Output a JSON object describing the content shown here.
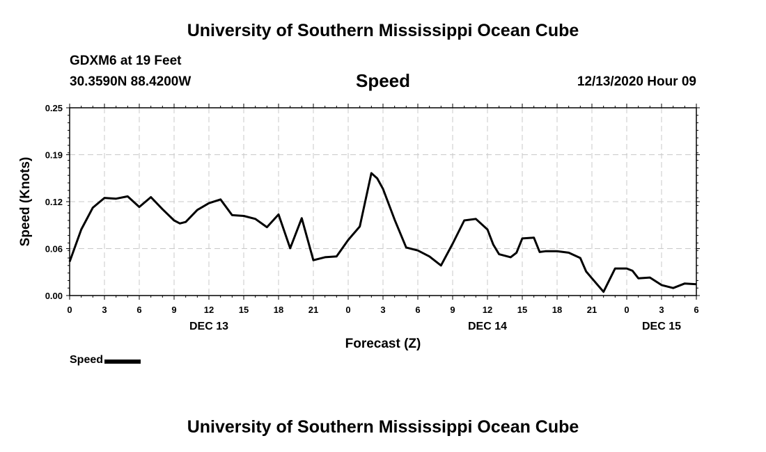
{
  "header": {
    "title": "University of Southern Mississippi Ocean Cube",
    "station": "GDXM6 at 19 Feet",
    "coords": "30.3590N 88.4200W",
    "datetime": "12/13/2020 Hour 09"
  },
  "footer": {
    "title": "University of Southern Mississippi Ocean Cube"
  },
  "legend": {
    "label": "Speed"
  },
  "chart_data": {
    "type": "line",
    "title": "Speed",
    "xlabel": "Forecast (Z)",
    "ylabel": "Speed (Knots)",
    "ylim": [
      0,
      0.25
    ],
    "yticks": [
      "0.00",
      "0.06",
      "0.12",
      "0.19",
      "0.25"
    ],
    "xlim": [
      0,
      54
    ],
    "xticks": [
      "0",
      "3",
      "6",
      "9",
      "12",
      "15",
      "18",
      "21",
      "0",
      "3",
      "6",
      "9",
      "12",
      "15",
      "18",
      "21",
      "0",
      "3",
      "6"
    ],
    "date_labels": [
      {
        "label": "DEC 13",
        "hour": 12
      },
      {
        "label": "DEC 14",
        "hour": 36
      },
      {
        "label": "DEC 15",
        "hour": 51
      }
    ],
    "grid": true,
    "line_color": "#000000",
    "series": [
      {
        "name": "Speed",
        "x": [
          0,
          1,
          2,
          3,
          4,
          5,
          6,
          7,
          8,
          9,
          9.5,
          10,
          11,
          12,
          13,
          14,
          15,
          16,
          17,
          18,
          19,
          20,
          21,
          22,
          23,
          24,
          25,
          26,
          26.5,
          27,
          28,
          29,
          30,
          31,
          32,
          33,
          34,
          35,
          36,
          36.5,
          37,
          38,
          38.5,
          39,
          40,
          40.5,
          41,
          42,
          43,
          44,
          44.5,
          45,
          46,
          47,
          48,
          48.5,
          49,
          50,
          51,
          52,
          53,
          54
        ],
        "values": [
          0.045,
          0.088,
          0.117,
          0.13,
          0.129,
          0.132,
          0.118,
          0.131,
          0.115,
          0.1,
          0.096,
          0.098,
          0.114,
          0.123,
          0.128,
          0.107,
          0.106,
          0.102,
          0.091,
          0.108,
          0.063,
          0.103,
          0.047,
          0.051,
          0.052,
          0.074,
          0.092,
          0.163,
          0.156,
          0.142,
          0.101,
          0.064,
          0.06,
          0.052,
          0.04,
          0.069,
          0.1,
          0.102,
          0.088,
          0.068,
          0.055,
          0.051,
          0.057,
          0.076,
          0.077,
          0.058,
          0.059,
          0.059,
          0.057,
          0.05,
          0.032,
          0.023,
          0.005,
          0.036,
          0.036,
          0.033,
          0.023,
          0.024,
          0.014,
          0.01,
          0.016,
          0.015
        ]
      }
    ]
  }
}
